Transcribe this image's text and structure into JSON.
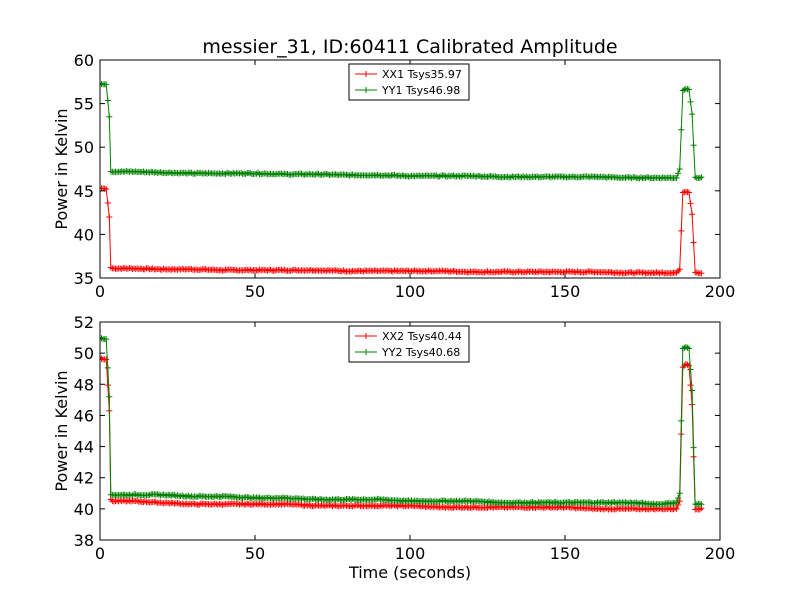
{
  "figure": {
    "title": "messier_31, ID:60411 Calibrated Amplitude"
  },
  "chart_data": [
    {
      "type": "line",
      "title": "messier_31, ID:60411 Calibrated Amplitude",
      "xlabel": "",
      "ylabel": "Power in Kelvin",
      "xlim": [
        0,
        200
      ],
      "ylim": [
        35,
        60
      ],
      "xticks": [
        "0",
        "50",
        "100",
        "150",
        "200"
      ],
      "yticks": [
        "35",
        "40",
        "45",
        "50",
        "55",
        "60"
      ],
      "legend_position": "top-center",
      "grid": false,
      "series": [
        {
          "name": "XX1 Tsys35.97",
          "color": "#ff0000",
          "x": [
            0,
            1,
            2,
            3,
            3.5,
            4,
            10,
            20,
            30,
            40,
            50,
            60,
            70,
            80,
            90,
            100,
            110,
            120,
            130,
            140,
            150,
            160,
            170,
            180,
            186,
            187,
            188,
            189,
            190,
            191,
            192,
            193,
            194
          ],
          "y": [
            45.3,
            45.3,
            45.2,
            42,
            36.2,
            36.1,
            36.1,
            36.0,
            36.0,
            35.9,
            35.9,
            35.9,
            35.9,
            35.8,
            35.8,
            35.8,
            35.8,
            35.7,
            35.7,
            35.7,
            35.7,
            35.7,
            35.6,
            35.6,
            35.6,
            36.0,
            44.8,
            44.9,
            44.8,
            42.3,
            35.7,
            35.6,
            35.6
          ]
        },
        {
          "name": "YY1 Tsys46.98",
          "color": "#008000",
          "x": [
            0,
            1,
            2,
            3,
            3.5,
            4,
            10,
            20,
            30,
            40,
            50,
            60,
            70,
            80,
            90,
            100,
            110,
            120,
            130,
            140,
            150,
            160,
            170,
            180,
            186,
            187,
            188,
            189,
            190,
            191,
            192,
            193,
            194
          ],
          "y": [
            57.3,
            57.2,
            57.2,
            53.5,
            47.2,
            47.2,
            47.2,
            47.1,
            47.0,
            47.0,
            47.0,
            46.9,
            46.9,
            46.8,
            46.8,
            46.7,
            46.7,
            46.7,
            46.6,
            46.6,
            46.6,
            46.6,
            46.5,
            46.5,
            46.5,
            47.5,
            56.5,
            56.7,
            56.6,
            53.8,
            46.6,
            46.5,
            46.5
          ]
        }
      ]
    },
    {
      "type": "line",
      "title": "",
      "xlabel": "Time (seconds)",
      "ylabel": "Power in Kelvin",
      "xlim": [
        0,
        200
      ],
      "ylim": [
        38,
        52
      ],
      "xticks": [
        "0",
        "50",
        "100",
        "150",
        "200"
      ],
      "yticks": [
        "38",
        "40",
        "42",
        "44",
        "46",
        "48",
        "50",
        "52"
      ],
      "legend_position": "top-center",
      "grid": false,
      "series": [
        {
          "name": "XX2 Tsys40.44",
          "color": "#ff0000",
          "x": [
            0,
            1,
            2,
            3,
            3.5,
            4,
            10,
            20,
            30,
            40,
            50,
            60,
            70,
            80,
            90,
            100,
            110,
            120,
            130,
            140,
            150,
            160,
            170,
            180,
            186,
            187,
            188,
            189,
            190,
            191,
            192,
            193,
            194
          ],
          "y": [
            49.7,
            49.6,
            49.6,
            46.3,
            40.6,
            40.5,
            40.5,
            40.4,
            40.3,
            40.3,
            40.3,
            40.3,
            40.2,
            40.2,
            40.2,
            40.2,
            40.1,
            40.1,
            40.1,
            40.1,
            40.1,
            40.0,
            40.0,
            40.0,
            40.0,
            40.5,
            49.1,
            49.3,
            49.2,
            46.7,
            40.0,
            40.0,
            40.0
          ]
        },
        {
          "name": "YY2 Tsys40.68",
          "color": "#008000",
          "x": [
            0,
            1,
            2,
            3,
            3.5,
            4,
            10,
            20,
            30,
            40,
            50,
            60,
            70,
            80,
            90,
            100,
            110,
            120,
            130,
            140,
            150,
            160,
            170,
            180,
            186,
            187,
            188,
            189,
            190,
            191,
            192,
            193,
            194
          ],
          "y": [
            51.0,
            50.9,
            50.9,
            47.2,
            40.9,
            40.9,
            40.9,
            40.9,
            40.8,
            40.8,
            40.7,
            40.7,
            40.6,
            40.6,
            40.6,
            40.5,
            40.5,
            40.5,
            40.4,
            40.4,
            40.4,
            40.4,
            40.4,
            40.3,
            40.4,
            41.0,
            50.3,
            50.4,
            50.3,
            47.6,
            40.3,
            40.3,
            40.3
          ]
        }
      ]
    }
  ]
}
